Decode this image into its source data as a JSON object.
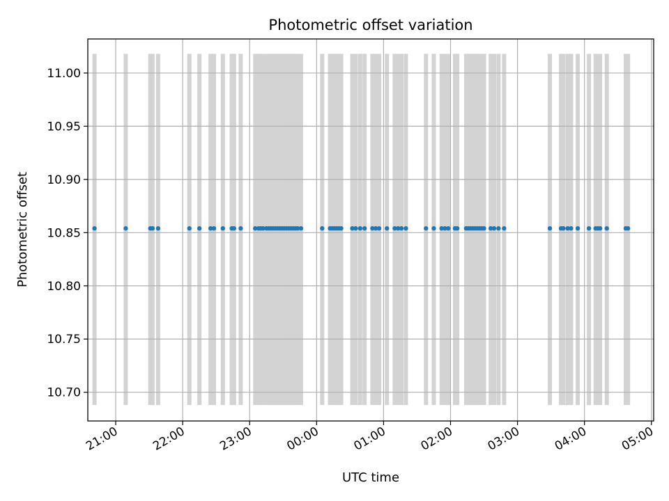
{
  "chart_data": {
    "type": "scatter",
    "title": "Photometric offset variation",
    "xlabel": "UTC time",
    "ylabel": "Photometric offset",
    "x_axis_type": "time",
    "x_range": [
      "20:35",
      "05:02"
    ],
    "ylim": [
      10.673,
      11.032
    ],
    "grid": true,
    "x_ticks": [
      "21:00",
      "22:00",
      "23:00",
      "00:00",
      "01:00",
      "02:00",
      "03:00",
      "04:00",
      "05:00"
    ],
    "y_ticks": [
      "10.70",
      "10.75",
      "10.80",
      "10.85",
      "10.90",
      "10.95",
      "11.00"
    ],
    "colors": {
      "points": "#1f77b4",
      "bands": "#d3d3d3",
      "grid": "#b0b0b0"
    },
    "band_range": [
      10.688,
      11.018
    ],
    "series": [
      {
        "values": 10.854,
        "x": [
          "20:41",
          "21:09",
          "21:31",
          "21:33",
          "21:38",
          "22:06",
          "22:15",
          "22:25",
          "22:28",
          "22:36",
          "22:44",
          "22:46",
          "22:52",
          "23:05",
          "23:08",
          "23:10",
          "23:12",
          "23:15",
          "23:17",
          "23:19",
          "23:21",
          "23:23",
          "23:25",
          "23:27",
          "23:29",
          "23:31",
          "23:33",
          "23:35",
          "23:37",
          "23:39",
          "23:41",
          "23:43",
          "23:46",
          "00:05",
          "00:12",
          "00:14",
          "00:16",
          "00:18",
          "00:20",
          "00:22",
          "00:32",
          "00:35",
          "00:39",
          "00:43",
          "00:50",
          "00:53",
          "00:56",
          "01:03",
          "01:10",
          "01:13",
          "01:16",
          "01:20",
          "01:38",
          "01:45",
          "01:52",
          "01:55",
          "01:58",
          "02:04",
          "02:06",
          "02:14",
          "02:16",
          "02:18",
          "02:20",
          "02:22",
          "02:24",
          "02:26",
          "02:28",
          "02:30",
          "02:36",
          "02:39",
          "02:43",
          "02:48",
          "03:29",
          "03:39",
          "03:41",
          "03:45",
          "03:48",
          "03:54",
          "04:04",
          "04:10",
          "04:12",
          "04:14",
          "04:20",
          "04:37",
          "04:39"
        ]
      }
    ]
  }
}
